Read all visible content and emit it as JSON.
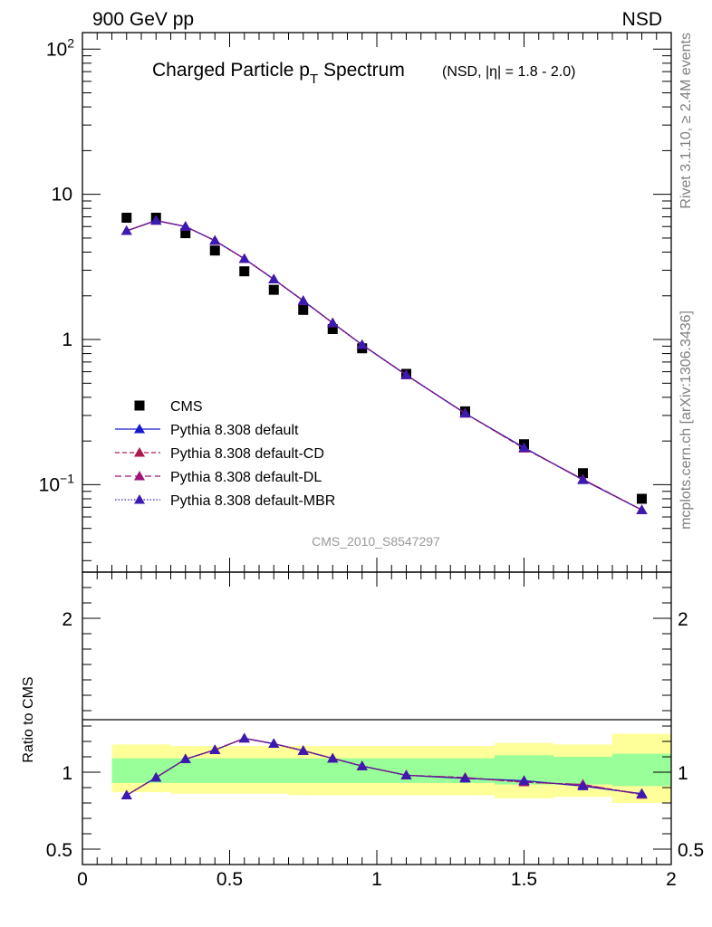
{
  "header": {
    "left": "900 GeV pp",
    "right": "NSD",
    "side_top": "Rivet 3.1.10, ≥ 2.4M events",
    "side_bottom": "mcplots.cern.ch [arXiv:1306.3436]"
  },
  "colors": {
    "data": "#000000",
    "default": "#1a1acc",
    "cd": "#b0174d",
    "dl": "#a0157a",
    "mbr": "#3a1ab0",
    "band_inner": "#99ff99",
    "band_outer": "#ffff99"
  },
  "chart_data": [
    {
      "type": "scatter",
      "title_main": "Charged Particle p",
      "title_sub": "T",
      "title_main2": " Spectrum",
      "title_extra": "(NSD, |η| = 1.8 - 2.0)",
      "watermark": "CMS_2010_S8547297",
      "yscale": "log",
      "xlim": [
        0,
        2
      ],
      "ylim": [
        0.025,
        130
      ],
      "ytick_labels": [
        {
          "value": 100,
          "base": "10",
          "exp": "2"
        },
        {
          "value": 10,
          "base": "10",
          "exp": ""
        },
        {
          "value": 1,
          "base": "1",
          "exp": ""
        },
        {
          "value": 0.1,
          "base": "10",
          "exp": "−1"
        }
      ],
      "x": [
        0.15,
        0.25,
        0.35,
        0.45,
        0.55,
        0.65,
        0.75,
        0.85,
        0.95,
        1.1,
        1.3,
        1.5,
        1.7,
        1.9
      ],
      "legend": [
        {
          "label": "CMS",
          "key": "data"
        },
        {
          "label": "Pythia 8.308 default",
          "key": "default"
        },
        {
          "label": "Pythia 8.308 default-CD",
          "key": "cd"
        },
        {
          "label": "Pythia 8.308 default-DL",
          "key": "dl"
        },
        {
          "label": "Pythia 8.308 default-MBR",
          "key": "mbr"
        }
      ],
      "series": [
        {
          "name": "CMS",
          "key": "data",
          "values": [
            6.9,
            6.9,
            5.4,
            4.1,
            2.95,
            2.2,
            1.6,
            1.18,
            0.87,
            0.58,
            0.32,
            0.19,
            0.12,
            0.08
          ]
        },
        {
          "name": "Pythia 8.308 default",
          "key": "default",
          "values": [
            5.6,
            6.6,
            6.0,
            4.8,
            3.6,
            2.6,
            1.85,
            1.3,
            0.92,
            0.57,
            0.31,
            0.18,
            0.108,
            0.067
          ]
        },
        {
          "name": "Pythia 8.308 default-CD",
          "key": "cd",
          "values": [
            5.6,
            6.6,
            6.0,
            4.8,
            3.6,
            2.6,
            1.85,
            1.3,
            0.92,
            0.57,
            0.31,
            0.178,
            0.109,
            0.067
          ]
        },
        {
          "name": "Pythia 8.308 default-DL",
          "key": "dl",
          "values": [
            5.6,
            6.6,
            6.0,
            4.8,
            3.6,
            2.6,
            1.85,
            1.3,
            0.92,
            0.57,
            0.31,
            0.178,
            0.109,
            0.067
          ]
        },
        {
          "name": "Pythia 8.308 default-MBR",
          "key": "mbr",
          "values": [
            5.6,
            6.6,
            6.0,
            4.8,
            3.6,
            2.6,
            1.85,
            1.3,
            0.92,
            0.57,
            0.31,
            0.18,
            0.108,
            0.067
          ]
        }
      ]
    },
    {
      "type": "line",
      "ylabel": "Ratio to CMS",
      "xlim": [
        0,
        2
      ],
      "ylim": [
        0.4,
        2.3
      ],
      "xtick_labels": [
        "0",
        "0.5",
        "1",
        "1.5",
        "2"
      ],
      "ytick_labels": [
        "0.5",
        "1",
        "2"
      ],
      "bins": [
        [
          0.1,
          0.2
        ],
        [
          0.2,
          0.3
        ],
        [
          0.3,
          0.4
        ],
        [
          0.4,
          0.5
        ],
        [
          0.5,
          0.6
        ],
        [
          0.6,
          0.7
        ],
        [
          0.7,
          0.8
        ],
        [
          0.8,
          0.9
        ],
        [
          0.9,
          1.0
        ],
        [
          1.0,
          1.2
        ],
        [
          1.2,
          1.4
        ],
        [
          1.4,
          1.6
        ],
        [
          1.6,
          1.8
        ],
        [
          1.8,
          2.0
        ]
      ],
      "band_outer": [
        [
          0.87,
          1.18
        ],
        [
          0.87,
          1.18
        ],
        [
          0.86,
          1.17
        ],
        [
          0.86,
          1.17
        ],
        [
          0.86,
          1.17
        ],
        [
          0.86,
          1.17
        ],
        [
          0.85,
          1.17
        ],
        [
          0.85,
          1.17
        ],
        [
          0.85,
          1.17
        ],
        [
          0.85,
          1.17
        ],
        [
          0.85,
          1.17
        ],
        [
          0.83,
          1.19
        ],
        [
          0.84,
          1.18
        ],
        [
          0.8,
          1.25
        ]
      ],
      "band_inner": [
        [
          0.93,
          1.09
        ],
        [
          0.93,
          1.09
        ],
        [
          0.93,
          1.09
        ],
        [
          0.93,
          1.09
        ],
        [
          0.93,
          1.09
        ],
        [
          0.93,
          1.09
        ],
        [
          0.93,
          1.09
        ],
        [
          0.93,
          1.09
        ],
        [
          0.93,
          1.09
        ],
        [
          0.93,
          1.09
        ],
        [
          0.93,
          1.09
        ],
        [
          0.92,
          1.11
        ],
        [
          0.92,
          1.1
        ],
        [
          0.91,
          1.12
        ]
      ],
      "x": [
        0.15,
        0.25,
        0.35,
        0.45,
        0.55,
        0.65,
        0.75,
        0.85,
        0.95,
        1.1,
        1.3,
        1.5,
        1.7,
        1.9
      ],
      "series": [
        {
          "name": "Pythia 8.308 default",
          "key": "default",
          "values": [
            0.85,
            0.965,
            1.085,
            1.145,
            1.22,
            1.185,
            1.14,
            1.09,
            1.04,
            0.98,
            0.96,
            0.945,
            0.91,
            0.86
          ]
        },
        {
          "name": "Pythia 8.308 default-CD",
          "key": "cd",
          "values": [
            0.85,
            0.965,
            1.085,
            1.145,
            1.22,
            1.185,
            1.14,
            1.09,
            1.04,
            0.98,
            0.965,
            0.935,
            0.92,
            0.855
          ]
        },
        {
          "name": "Pythia 8.308 default-DL",
          "key": "dl",
          "values": [
            0.85,
            0.965,
            1.085,
            1.145,
            1.22,
            1.185,
            1.14,
            1.09,
            1.04,
            0.98,
            0.965,
            0.935,
            0.92,
            0.855
          ]
        },
        {
          "name": "Pythia 8.308 default-MBR",
          "key": "mbr",
          "values": [
            0.85,
            0.965,
            1.085,
            1.145,
            1.22,
            1.185,
            1.14,
            1.09,
            1.04,
            0.98,
            0.96,
            0.945,
            0.91,
            0.86
          ]
        }
      ]
    }
  ]
}
